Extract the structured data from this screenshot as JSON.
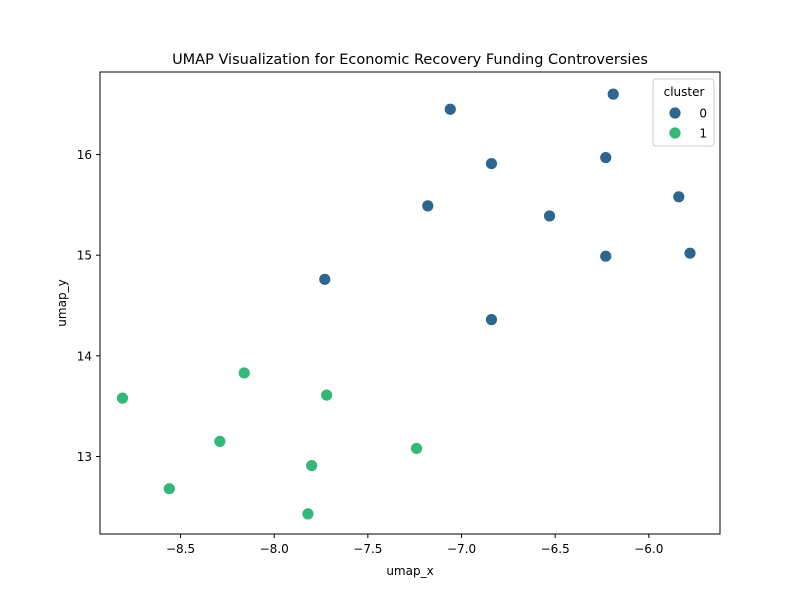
{
  "chart_data": {
    "type": "scatter",
    "title": "UMAP Visualization for Economic Recovery Funding Controversies",
    "xlabel": "umap_x",
    "ylabel": "umap_y",
    "xlim": [
      -8.93,
      -5.62
    ],
    "ylim": [
      12.23,
      16.82
    ],
    "x_ticks": [
      -8.5,
      -8.0,
      -7.5,
      -7.0,
      -6.5,
      -6.0
    ],
    "x_tick_labels": [
      "−8.5",
      "−8.0",
      "−7.5",
      "−7.0",
      "−6.5",
      "−6.0"
    ],
    "y_ticks": [
      13,
      14,
      15,
      16
    ],
    "y_tick_labels": [
      "13",
      "14",
      "15",
      "16"
    ],
    "grid": false,
    "legend": {
      "title": "cluster",
      "placement": "top-right"
    },
    "series": [
      {
        "name": "0",
        "color": "#2e6690",
        "points": [
          {
            "x": -7.06,
            "y": 16.45
          },
          {
            "x": -6.19,
            "y": 16.6
          },
          {
            "x": -6.84,
            "y": 15.91
          },
          {
            "x": -6.23,
            "y": 15.97
          },
          {
            "x": -7.18,
            "y": 15.49
          },
          {
            "x": -6.53,
            "y": 15.39
          },
          {
            "x": -5.84,
            "y": 15.58
          },
          {
            "x": -6.23,
            "y": 14.99
          },
          {
            "x": -5.78,
            "y": 15.02
          },
          {
            "x": -7.73,
            "y": 14.76
          },
          {
            "x": -6.84,
            "y": 14.36
          }
        ]
      },
      {
        "name": "1",
        "color": "#35b779",
        "points": [
          {
            "x": -8.16,
            "y": 13.83
          },
          {
            "x": -8.81,
            "y": 13.58
          },
          {
            "x": -7.72,
            "y": 13.61
          },
          {
            "x": -8.29,
            "y": 13.15
          },
          {
            "x": -7.24,
            "y": 13.08
          },
          {
            "x": -7.8,
            "y": 12.91
          },
          {
            "x": -8.56,
            "y": 12.68
          },
          {
            "x": -7.82,
            "y": 12.43
          }
        ]
      }
    ]
  }
}
